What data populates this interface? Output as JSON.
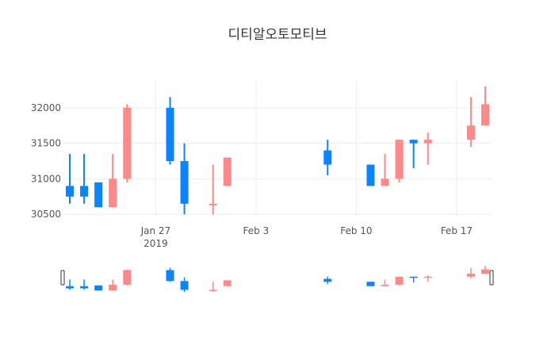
{
  "chart_data": {
    "type": "candlestick",
    "title": "디티알오토모티브",
    "y_ticks": [
      "30500",
      "31000",
      "31500",
      "32000"
    ],
    "x_ticks": [
      {
        "date": "2019-01-27",
        "label": "Jan 27",
        "sublabel": "2019"
      },
      {
        "date": "2019-02-03",
        "label": "Feb 3",
        "sublabel": ""
      },
      {
        "date": "2019-02-10",
        "label": "Feb 10",
        "sublabel": ""
      },
      {
        "date": "2019-02-17",
        "label": "Feb 17",
        "sublabel": ""
      }
    ],
    "x_range": [
      "2019-01-21",
      "2019-02-19"
    ],
    "y_range": [
      30480,
      32400
    ],
    "increasing_color": "#ff8888",
    "decreasing_color": "#0a84ff",
    "grid": true,
    "rangeslider": true,
    "candles": [
      {
        "date": "2019-01-21",
        "open": 30900,
        "high": 31350,
        "low": 30650,
        "close": 30750
      },
      {
        "date": "2019-01-22",
        "open": 30900,
        "high": 31350,
        "low": 30650,
        "close": 30750
      },
      {
        "date": "2019-01-23",
        "open": 30950,
        "high": 30950,
        "low": 30600,
        "close": 30600
      },
      {
        "date": "2019-01-24",
        "open": 30600,
        "high": 31350,
        "low": 30600,
        "close": 31000
      },
      {
        "date": "2019-01-25",
        "open": 31000,
        "high": 32050,
        "low": 30950,
        "close": 32000
      },
      {
        "date": "2019-01-28",
        "open": 32000,
        "high": 32150,
        "low": 31200,
        "close": 31250
      },
      {
        "date": "2019-01-29",
        "open": 31250,
        "high": 31500,
        "low": 30500,
        "close": 30650
      },
      {
        "date": "2019-01-31",
        "open": 30650,
        "high": 31200,
        "low": 30500,
        "close": 30650
      },
      {
        "date": "2019-02-01",
        "open": 30900,
        "high": 31300,
        "low": 30900,
        "close": 31300
      },
      {
        "date": "2019-02-08",
        "open": 31400,
        "high": 31550,
        "low": 31050,
        "close": 31200
      },
      {
        "date": "2019-02-11",
        "open": 31200,
        "high": 31200,
        "low": 30900,
        "close": 30900
      },
      {
        "date": "2019-02-12",
        "open": 30900,
        "high": 31350,
        "low": 30900,
        "close": 31000
      },
      {
        "date": "2019-02-13",
        "open": 31000,
        "high": 31550,
        "low": 30950,
        "close": 31550
      },
      {
        "date": "2019-02-14",
        "open": 31550,
        "high": 31550,
        "low": 31150,
        "close": 31500
      },
      {
        "date": "2019-02-15",
        "open": 31500,
        "high": 31650,
        "low": 31200,
        "close": 31550
      },
      {
        "date": "2019-02-18",
        "open": 31550,
        "high": 32150,
        "low": 31450,
        "close": 31750
      },
      {
        "date": "2019-02-19",
        "open": 31750,
        "high": 32300,
        "low": 31750,
        "close": 32050
      }
    ]
  }
}
